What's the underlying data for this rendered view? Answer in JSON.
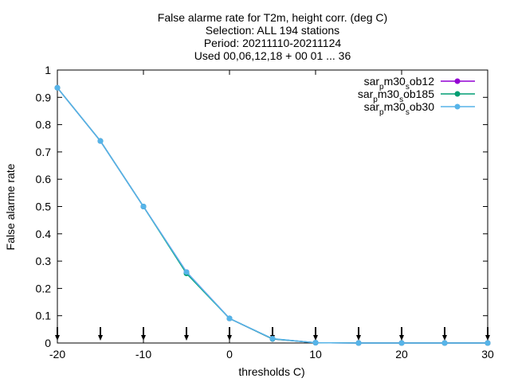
{
  "chart_data": {
    "type": "line",
    "title_lines": [
      "False alarme rate  for T2m, height corr. (deg C)",
      "Selection: ALL    194 stations",
      "Period: 20211110-20211124",
      "Used 00,06,12,18 + 00 01 ... 36"
    ],
    "xlabel": "thresholds C)",
    "ylabel": "False alarme rate",
    "xlim": [
      -20,
      30
    ],
    "ylim": [
      0,
      1
    ],
    "xticks": [
      -20,
      -10,
      0,
      10,
      20,
      30
    ],
    "yticks": [
      0,
      0.1,
      0.2,
      0.3,
      0.4,
      0.5,
      0.6,
      0.7,
      0.8,
      0.9,
      1
    ],
    "ytick_labels": [
      "0",
      "0.1",
      "0.2",
      "0.3",
      "0.4",
      "0.5",
      "0.6",
      "0.7",
      "0.8",
      "0.9",
      "1"
    ],
    "threshold_markers_x": [
      -20,
      -15,
      -10,
      -5,
      0,
      5,
      10,
      15,
      20,
      25,
      30
    ],
    "legend_position": "top-right",
    "grid": false,
    "x": [
      -20,
      -15,
      -10,
      -5,
      0,
      5,
      10,
      15,
      20,
      25,
      30
    ],
    "series": [
      {
        "legend": {
          "base": "sar",
          "sub1": "p",
          "mid": "m30",
          "sub2": "s",
          "tail": "ob12"
        },
        "color": "#9400d3",
        "values": [
          0.935,
          0.74,
          0.5,
          0.26,
          0.09,
          0.015,
          0.001,
          0.0,
          0.0,
          0.0,
          0.0
        ]
      },
      {
        "legend": {
          "base": "sar",
          "sub1": "p",
          "mid": "m30",
          "sub2": "s",
          "tail": "ob185"
        },
        "color": "#009e73",
        "values": [
          0.935,
          0.74,
          0.5,
          0.255,
          0.09,
          0.015,
          0.001,
          0.0,
          0.0,
          0.0,
          0.0
        ]
      },
      {
        "legend": {
          "base": "sar",
          "sub1": "p",
          "mid": "m30",
          "sub2": "s",
          "tail": "ob30"
        },
        "color": "#56b4e9",
        "values": [
          0.935,
          0.74,
          0.5,
          0.26,
          0.09,
          0.016,
          0.001,
          0.0,
          0.0,
          0.0,
          0.0
        ]
      }
    ]
  }
}
